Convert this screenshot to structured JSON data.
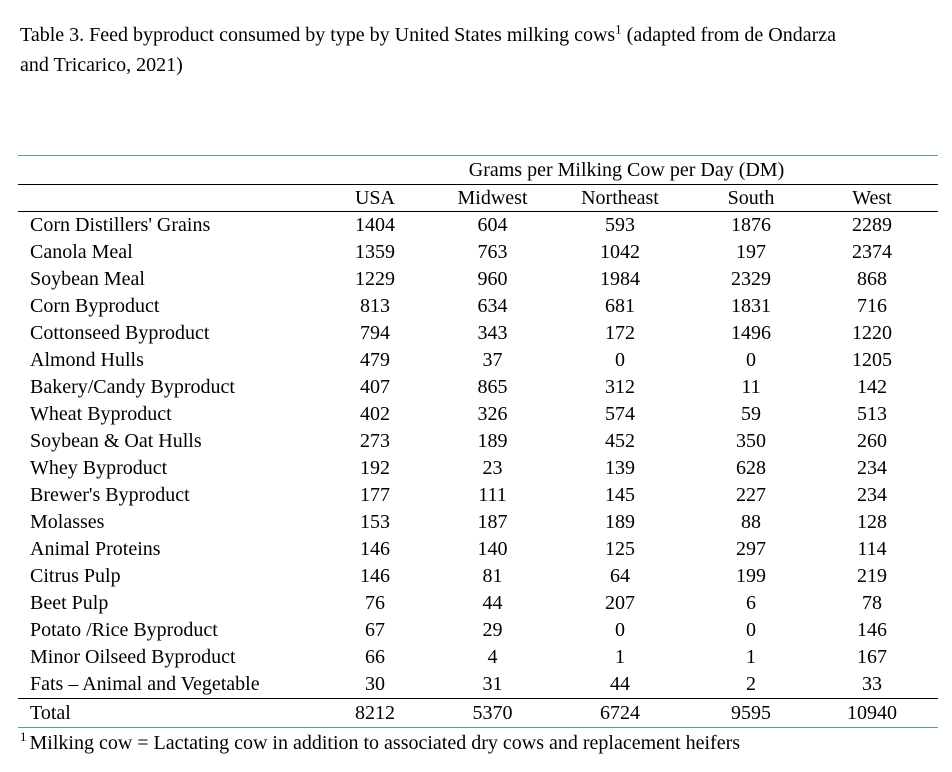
{
  "title": {
    "text": "Table 3. Feed byproduct consumed by type by United States milking cows",
    "footnote_mark": "1",
    "suffix": " (adapted from de Ondarza and Tricarico, 2021)"
  },
  "table": {
    "group_header": "Grams per Milking Cow per Day (DM)",
    "columns": [
      "USA",
      "Midwest",
      "Northeast",
      "South",
      "West"
    ],
    "rows": [
      {
        "label": "Corn Distillers' Grains",
        "values": [
          1404,
          604,
          593,
          1876,
          2289
        ]
      },
      {
        "label": "Canola Meal",
        "values": [
          1359,
          763,
          1042,
          197,
          2374
        ]
      },
      {
        "label": "Soybean Meal",
        "values": [
          1229,
          960,
          1984,
          2329,
          868
        ]
      },
      {
        "label": "Corn Byproduct",
        "values": [
          813,
          634,
          681,
          1831,
          716
        ]
      },
      {
        "label": "Cottonseed Byproduct",
        "values": [
          794,
          343,
          172,
          1496,
          1220
        ]
      },
      {
        "label": "Almond Hulls",
        "values": [
          479,
          37,
          0,
          0,
          1205
        ]
      },
      {
        "label": "Bakery/Candy Byproduct",
        "values": [
          407,
          865,
          312,
          11,
          142
        ]
      },
      {
        "label": "Wheat Byproduct",
        "values": [
          402,
          326,
          574,
          59,
          513
        ]
      },
      {
        "label": "Soybean & Oat Hulls",
        "values": [
          273,
          189,
          452,
          350,
          260
        ]
      },
      {
        "label": "Whey Byproduct",
        "values": [
          192,
          23,
          139,
          628,
          234
        ]
      },
      {
        "label": "Brewer's Byproduct",
        "values": [
          177,
          111,
          145,
          227,
          234
        ]
      },
      {
        "label": "Molasses",
        "values": [
          153,
          187,
          189,
          88,
          128
        ]
      },
      {
        "label": "Animal Proteins",
        "values": [
          146,
          140,
          125,
          297,
          114
        ]
      },
      {
        "label": "Citrus Pulp",
        "values": [
          146,
          81,
          64,
          199,
          219
        ]
      },
      {
        "label": "Beet Pulp",
        "values": [
          76,
          44,
          207,
          6,
          78
        ]
      },
      {
        "label": "Potato /Rice Byproduct",
        "values": [
          67,
          29,
          0,
          0,
          146
        ]
      },
      {
        "label": "Minor Oilseed Byproduct",
        "values": [
          66,
          4,
          1,
          1,
          167
        ]
      },
      {
        "label": "Fats – Animal and Vegetable",
        "values": [
          30,
          31,
          44,
          2,
          33
        ]
      }
    ],
    "total": {
      "label": "Total",
      "values": [
        8212,
        5370,
        6724,
        9595,
        10940
      ]
    }
  },
  "footnote": {
    "mark": "1",
    "text": "Milking cow = Lactating cow in addition to associated dry cows and replacement heifers"
  },
  "colors": {
    "text": "#000000",
    "rule_outer": "#5b9aa0",
    "rule_inner": "#000000"
  }
}
